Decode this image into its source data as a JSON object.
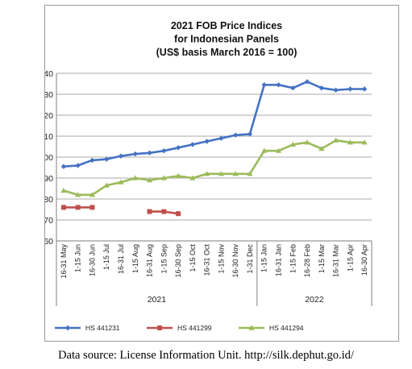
{
  "chart_data": {
    "type": "line",
    "title": [
      "2021 FOB Price Indices",
      "for Indonesian Panels",
      "(US$ basis March 2016 = 100)"
    ],
    "xlabel": "",
    "ylabel": "",
    "ylim": [
      60,
      140
    ],
    "yticks": [
      60,
      70,
      80,
      90,
      100,
      110,
      120,
      130,
      140
    ],
    "grid": true,
    "legend_position": "bottom",
    "categories": [
      "16-31 May",
      "1-15 Jun",
      "16-30 Jun",
      "1-15 Jul",
      "16-31 Jul",
      "1-15 Aug",
      "16-31 Aug",
      "1-15 Sep",
      "16-30 Sep",
      "1-15 Oct",
      "16-31 Oct",
      "1-15 Nov",
      "16-30 Nov",
      "1-31 Dec",
      "1-15 Jan",
      "16-31 Jan",
      "1-15 Feb",
      "16-28 Feb",
      "1-15 Mar",
      "16-31 Mar",
      "1-15 Apr",
      "16-30 Apr"
    ],
    "year_groups": [
      {
        "label": "2021",
        "start": 0,
        "end": 13
      },
      {
        "label": "2022",
        "start": 14,
        "end": 21
      }
    ],
    "series": [
      {
        "name": "HS 441231",
        "color": "#4472c4",
        "marker": "diamond",
        "values": [
          95.5,
          96,
          98.5,
          99,
          100.5,
          101.5,
          102,
          103,
          104.5,
          106,
          107.5,
          109,
          110.5,
          111,
          134.5,
          134.5,
          133,
          136,
          133,
          132,
          132.5,
          132.5
        ]
      },
      {
        "name": "HS 441299",
        "color": "#c0504d",
        "marker": "square",
        "values": [
          76,
          76,
          76,
          null,
          null,
          null,
          74,
          74,
          73,
          null,
          null,
          null,
          null,
          null,
          null,
          null,
          null,
          null,
          null,
          null,
          null,
          null
        ]
      },
      {
        "name": "HS 441294",
        "color": "#9bbb59",
        "marker": "triangle",
        "values": [
          84,
          82,
          82,
          86.5,
          88,
          90,
          89,
          90,
          91,
          90,
          92,
          92,
          92,
          92,
          103,
          103,
          106,
          107,
          104,
          108,
          107,
          107
        ]
      }
    ]
  },
  "footer": {
    "source": "Data source: License Information Unit. http://silk.dephut.go.id/"
  }
}
